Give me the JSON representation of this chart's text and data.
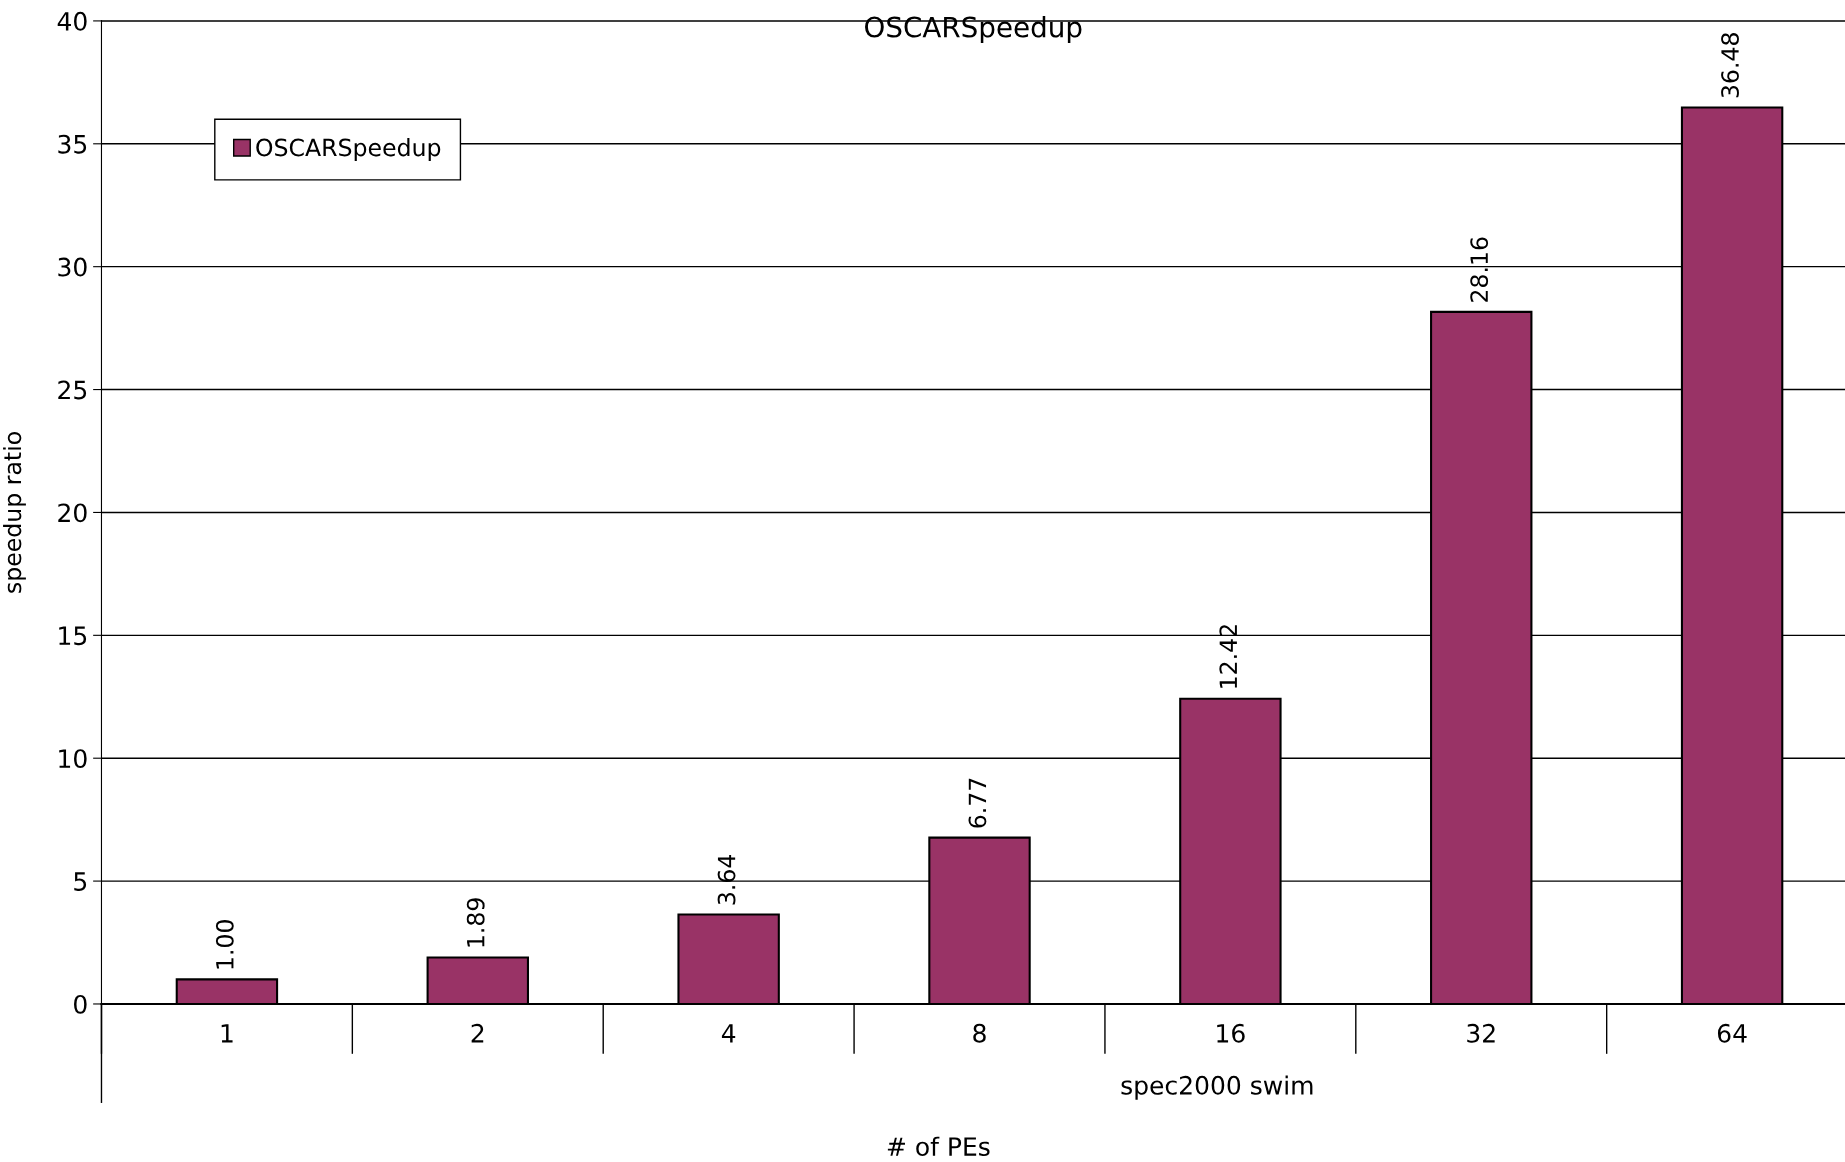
{
  "chart_data": {
    "type": "bar",
    "title": "OSCARSpeedup",
    "xlabel": "# of PEs",
    "ylabel": "speedup ratio",
    "categories": [
      "1",
      "2",
      "4",
      "8",
      "16",
      "32",
      "64"
    ],
    "series": [
      {
        "name": "OSCARSpeedup",
        "color": "#993366",
        "values": [
          1.0,
          1.89,
          3.64,
          6.77,
          12.42,
          28.16,
          36.48
        ]
      }
    ],
    "value_labels": [
      "1.00",
      "1.89",
      "3.64",
      "6.77",
      "12.42",
      "28.16",
      "36.48"
    ],
    "ylim": [
      0,
      40
    ],
    "yticks": [
      0,
      5,
      10,
      15,
      20,
      25,
      30,
      35,
      40
    ],
    "grid": "y",
    "legend": "top left",
    "annotations": [
      "spec2000 swim"
    ]
  }
}
